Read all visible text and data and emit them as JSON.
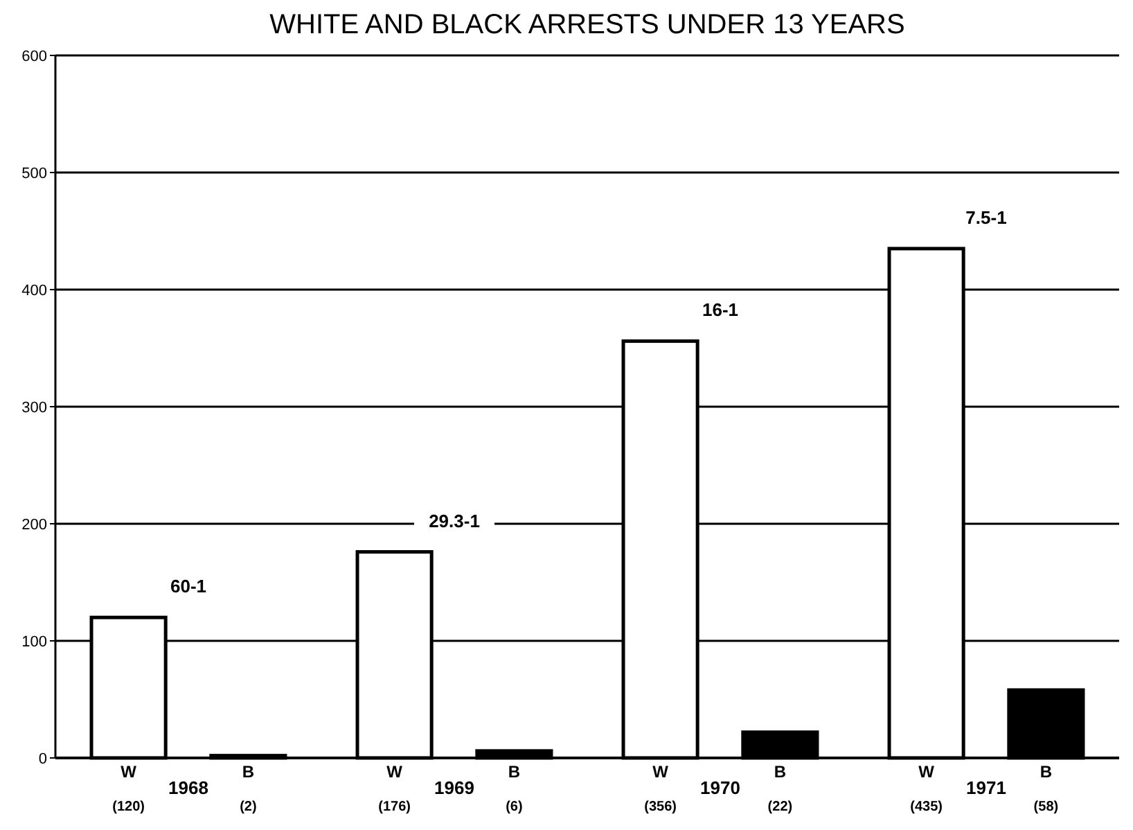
{
  "chart_data": {
    "type": "bar",
    "title": "WHITE AND BLACK ARRESTS UNDER 13 YEARS",
    "categories": [
      "1968",
      "1969",
      "1970",
      "1971"
    ],
    "series": [
      {
        "name": "W",
        "color": "#ffffff",
        "values": [
          120,
          176,
          356,
          435
        ],
        "value_labels": [
          "(120)",
          "(176)",
          "(356)",
          "(435)"
        ]
      },
      {
        "name": "B",
        "color": "#000000",
        "values": [
          2,
          6,
          22,
          58
        ],
        "value_labels": [
          "(2)",
          "(6)",
          "(22)",
          "(58)"
        ]
      }
    ],
    "ylim": [
      0,
      600
    ],
    "yticks": [
      0,
      100,
      200,
      300,
      400,
      500,
      600
    ],
    "grid": "y",
    "annotations": [
      "60-1",
      "29.3-1",
      "16-1",
      "7.5-1"
    ]
  }
}
